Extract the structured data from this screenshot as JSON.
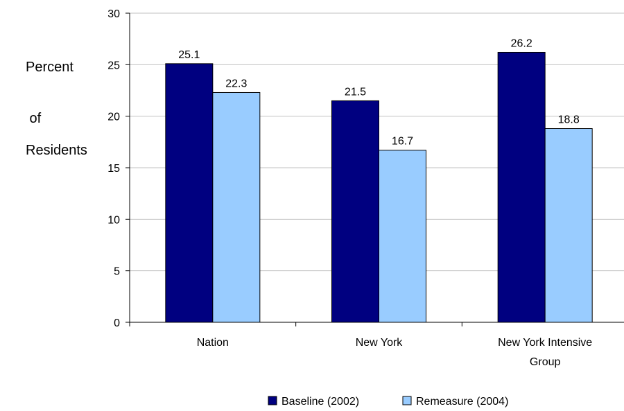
{
  "chart_data": {
    "type": "bar",
    "title": "",
    "ylabel_lines": [
      "Percent",
      " of",
      "Residents"
    ],
    "xlabel": "",
    "ylim": [
      0,
      30
    ],
    "yticks": [
      0,
      5,
      10,
      15,
      20,
      25,
      30
    ],
    "grid": true,
    "legend_position": "bottom",
    "categories": [
      [
        "Nation"
      ],
      [
        "New York"
      ],
      [
        "New York Intensive",
        "Group"
      ]
    ],
    "series": [
      {
        "name": "Baseline (2002)",
        "color": "#000080",
        "values": [
          25.1,
          21.5,
          26.2
        ],
        "labels": [
          "25.1",
          "21.5",
          "26.2"
        ]
      },
      {
        "name": "Remeasure (2004)",
        "color": "#99ccff",
        "values": [
          22.3,
          16.7,
          18.8
        ],
        "labels": [
          "22.3",
          "16.7",
          "18.8"
        ]
      }
    ]
  }
}
